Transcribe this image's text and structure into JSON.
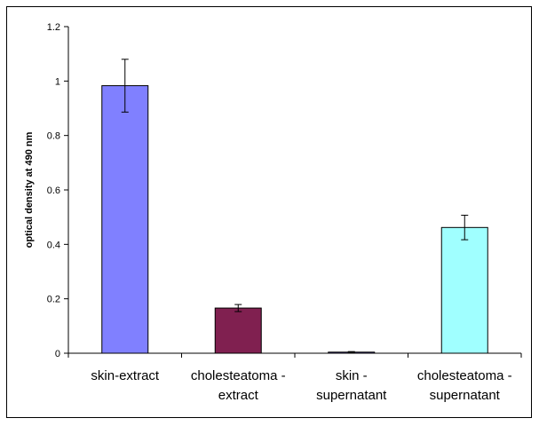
{
  "chart_data": {
    "type": "bar",
    "title": "",
    "xlabel": "",
    "ylabel": "optical density at 490 nm",
    "ylim": [
      0,
      1.2
    ],
    "yticks": [
      "0",
      "0.2",
      "0.4",
      "0.6",
      "0.8",
      "1",
      "1.2"
    ],
    "grid": false,
    "legend": "none",
    "categories": [
      [
        "skin-extract"
      ],
      [
        "cholesteatoma -",
        "extract"
      ],
      [
        "skin -",
        "supernatant"
      ],
      [
        "cholesteatoma -",
        "supernatant"
      ]
    ],
    "values": [
      0.983,
      0.166,
      0.004,
      0.462
    ],
    "errors": [
      0.097,
      0.013,
      0.002,
      0.045
    ],
    "colors": [
      "#8080FF",
      "#802050",
      "#6A5ACD",
      "#A0FFFF"
    ]
  }
}
